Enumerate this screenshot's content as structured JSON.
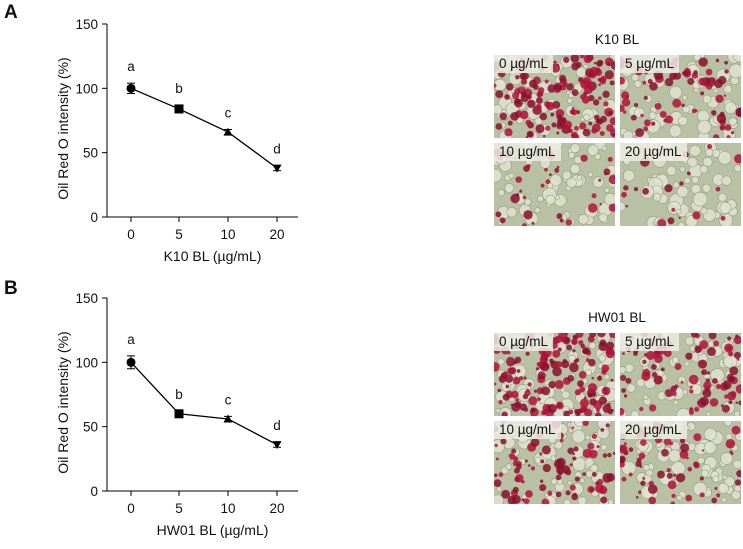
{
  "panels": [
    {
      "letter": "A",
      "micrograph_title": "K10 BL",
      "micrographs": [
        {
          "label": "0 µg/mL",
          "density": 0.95
        },
        {
          "label": "5 µg/mL",
          "density": 0.45
        },
        {
          "label": "10 µg/mL",
          "density": 0.25
        },
        {
          "label": "20 µg/mL",
          "density": 0.12
        }
      ]
    },
    {
      "letter": "B",
      "micrograph_title": "HW01 BL",
      "micrographs": [
        {
          "label": "0 µg/mL",
          "density": 1.0
        },
        {
          "label": "5 µg/mL",
          "density": 0.6
        },
        {
          "label": "10 µg/mL",
          "density": 0.55
        },
        {
          "label": "20 µg/mL",
          "density": 0.4
        }
      ]
    }
  ],
  "chart_data": [
    {
      "type": "line",
      "categories": [
        "0",
        "5",
        "10",
        "20"
      ],
      "values": [
        100,
        84,
        66,
        38
      ],
      "errors": [
        4,
        3,
        2,
        2
      ],
      "letters": [
        "a",
        "b",
        "c",
        "d"
      ],
      "markers": [
        "circle",
        "square",
        "triangle-up",
        "triangle-down"
      ],
      "xlabel": "K10 BL (µg/mL)",
      "ylabel": "Oil Red O intensity (%)",
      "ylim": [
        0,
        150
      ],
      "yticks": [
        0,
        50,
        100,
        150
      ],
      "grid": false,
      "colors": {
        "line": "#000000"
      }
    },
    {
      "type": "line",
      "categories": [
        "0",
        "5",
        "10",
        "20"
      ],
      "values": [
        100,
        60,
        56,
        36
      ],
      "errors": [
        5,
        2,
        2,
        2
      ],
      "letters": [
        "a",
        "b",
        "c",
        "d"
      ],
      "markers": [
        "circle",
        "square",
        "triangle-up",
        "triangle-down"
      ],
      "xlabel": "HW01 BL (µg/mL)",
      "ylabel": "Oil Red O intensity (%)",
      "ylim": [
        0,
        150
      ],
      "yticks": [
        0,
        50,
        100,
        150
      ],
      "grid": false,
      "colors": {
        "line": "#000000"
      }
    }
  ]
}
